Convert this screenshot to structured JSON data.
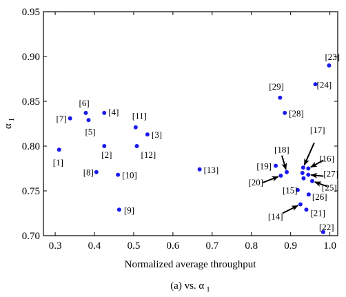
{
  "chart_data": {
    "type": "scatter",
    "xlabel": "Normalized average throughput",
    "ylabel_main": "α",
    "ylabel_sub": "1",
    "caption_main": "(a) vs. α",
    "caption_sub": "1",
    "xlim": [
      0.27,
      1.02
    ],
    "ylim": [
      0.7,
      0.95
    ],
    "xticks": [
      0.3,
      0.4,
      0.5,
      0.6,
      0.7,
      0.8,
      0.9,
      1.0
    ],
    "xtick_labels": [
      "0.3",
      "0.4",
      "0.5",
      "0.6",
      "0.7",
      "0.8",
      "0.9",
      "1.0"
    ],
    "yticks": [
      0.7,
      0.75,
      0.8,
      0.85,
      0.9,
      0.95
    ],
    "ytick_labels": [
      "0.70",
      "0.75",
      "0.80",
      "0.85",
      "0.90",
      "0.95"
    ],
    "point_color": "#1a1aee",
    "points": [
      {
        "label": "[1]",
        "x": 0.31,
        "y": 0.796
      },
      {
        "label": "[2]",
        "x": 0.425,
        "y": 0.8
      },
      {
        "label": "[3]",
        "x": 0.535,
        "y": 0.813
      },
      {
        "label": "[4]",
        "x": 0.425,
        "y": 0.837
      },
      {
        "label": "[5]",
        "x": 0.385,
        "y": 0.829
      },
      {
        "label": "[6]",
        "x": 0.378,
        "y": 0.837
      },
      {
        "label": "[7]",
        "x": 0.338,
        "y": 0.831
      },
      {
        "label": "[8]",
        "x": 0.405,
        "y": 0.771
      },
      {
        "label": "[9]",
        "x": 0.463,
        "y": 0.729
      },
      {
        "label": "[10]",
        "x": 0.46,
        "y": 0.768
      },
      {
        "label": "[11]",
        "x": 0.505,
        "y": 0.821
      },
      {
        "label": "[12]",
        "x": 0.508,
        "y": 0.8
      },
      {
        "label": "[13]",
        "x": 0.668,
        "y": 0.774
      },
      {
        "label": "[14]",
        "x": 0.925,
        "y": 0.735
      },
      {
        "label": "[15]",
        "x": 0.918,
        "y": 0.751
      },
      {
        "label": "[16]",
        "x": 0.945,
        "y": 0.775
      },
      {
        "label": "[17]",
        "x": 0.932,
        "y": 0.776
      },
      {
        "label": "[18]",
        "x": 0.89,
        "y": 0.771
      },
      {
        "label": "[19]",
        "x": 0.862,
        "y": 0.778
      },
      {
        "label": "[20]",
        "x": 0.875,
        "y": 0.767
      },
      {
        "label": "[21]",
        "x": 0.94,
        "y": 0.729
      },
      {
        "label": "[22]",
        "x": 0.983,
        "y": 0.704
      },
      {
        "label": "[23]",
        "x": 0.998,
        "y": 0.89
      },
      {
        "label": "[24]",
        "x": 0.963,
        "y": 0.869
      },
      {
        "label": "[25]",
        "x": 0.955,
        "y": 0.761
      },
      {
        "label": "[26]",
        "x": 0.946,
        "y": 0.746
      },
      {
        "label": "[27]",
        "x": 0.945,
        "y": 0.768
      },
      {
        "label": "[28]",
        "x": 0.885,
        "y": 0.837
      },
      {
        "label": "[29]",
        "x": 0.873,
        "y": 0.854
      }
    ],
    "extra_points": [
      {
        "x": 0.933,
        "y": 0.764
      },
      {
        "x": 0.93,
        "y": 0.77
      }
    ]
  }
}
